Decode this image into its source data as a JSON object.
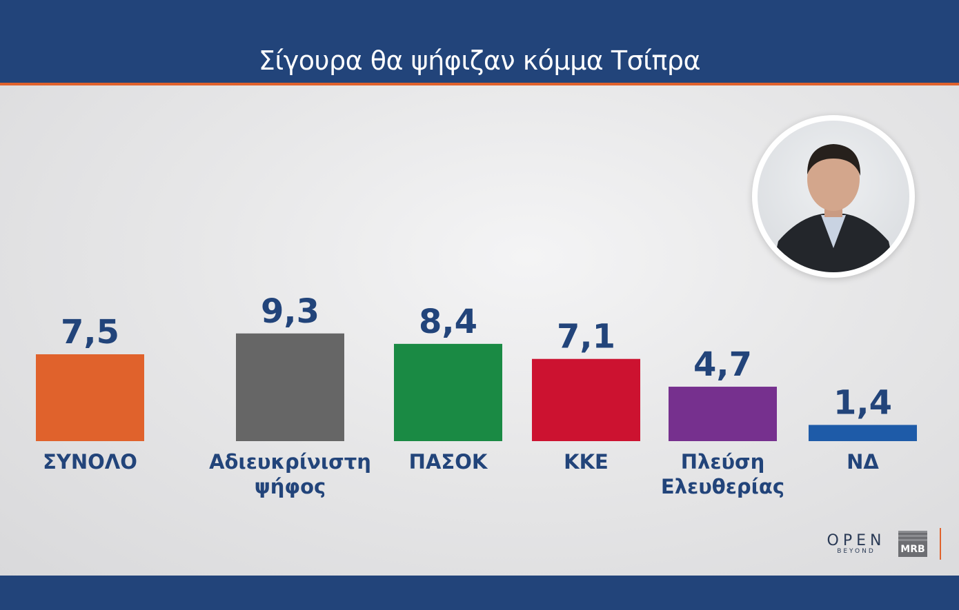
{
  "title": "Σίγουρα θα ψήφιζαν κόμμα Τσίπρα",
  "logos": {
    "open": "OPEN",
    "open_sub": "BEYOND",
    "mrb": "MRB"
  },
  "chart_data": {
    "type": "bar",
    "title": "Σίγουρα θα ψήφιζαν κόμμα Τσίπρα",
    "categories": [
      "ΣΥΝΟΛΟ",
      "Αδιευκρίνιστη ψήφος",
      "ΠΑΣΟΚ",
      "ΚΚΕ",
      "Πλεύση Ελευθερίας",
      "ΝΔ"
    ],
    "category_lines": [
      [
        "ΣΥΝΟΛΟ"
      ],
      [
        "Αδιευκρίνιστη",
        "ψήφος"
      ],
      [
        "ΠΑΣΟΚ"
      ],
      [
        "ΚΚΕ"
      ],
      [
        "Πλεύση",
        "Ελευθερίας"
      ],
      [
        "ΝΔ"
      ]
    ],
    "values": [
      7.5,
      9.3,
      8.4,
      7.1,
      4.7,
      1.4
    ],
    "value_labels": [
      "7,5",
      "9,3",
      "8,4",
      "7,1",
      "4,7",
      "1,4"
    ],
    "colors": [
      "#e0622c",
      "#666666",
      "#1a8a44",
      "#cc1230",
      "#76308e",
      "#1e5ba8"
    ],
    "ylim": [
      0,
      10
    ],
    "grid": false,
    "legend": "none"
  }
}
